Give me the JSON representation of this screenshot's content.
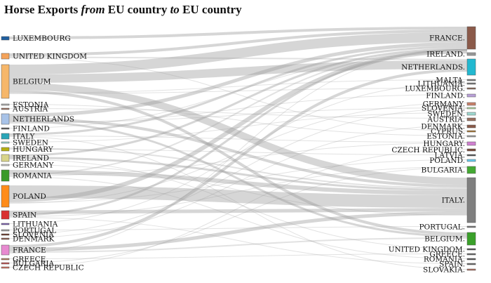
{
  "title": {
    "part1": "Horse Exports ",
    "part2": "from",
    "part3": " EU country ",
    "part4": "to",
    "part5": " EU country"
  },
  "colors": {
    "link": "#9e9e9e",
    "text": "#111111"
  },
  "source_nodes": [
    {
      "label": "LUXEMBOURG",
      "color": "#1f5fa0"
    },
    {
      "label": "UNITED KINGDOM",
      "color": "#f4a35a"
    },
    {
      "label": "BELGIUM",
      "color": "#f6b76a"
    },
    {
      "label": "ESTONIA",
      "color": "#b0b0b0"
    },
    {
      "label": "AUSTRIA",
      "color": "#9a6e5e"
    },
    {
      "label": "NETHERLANDS",
      "color": "#a8c3e8"
    },
    {
      "label": "FINLAND",
      "color": "#5a5a5a"
    },
    {
      "label": "ITALY",
      "color": "#2aa6b8"
    },
    {
      "label": "SWEDEN",
      "color": "#9fd9d0"
    },
    {
      "label": "HUNGARY",
      "color": "#b5b012"
    },
    {
      "label": "IRELAND",
      "color": "#d8d48a"
    },
    {
      "label": "GERMANY",
      "color": "#c8c8c8"
    },
    {
      "label": "ROMANIA",
      "color": "#3a9a2a"
    },
    {
      "label": "POLAND",
      "color": "#ff8c1a"
    },
    {
      "label": "SPAIN",
      "color": "#d93030"
    },
    {
      "label": "LITHUANIA",
      "color": "#7a5db0"
    },
    {
      "label": "PORTUGAL",
      "color": "#a0a0a0"
    },
    {
      "label": "SLOVENIA",
      "color": "#6b3a2a"
    },
    {
      "label": "DENMARK",
      "color": "#8a5a4a"
    },
    {
      "label": "FRANCE",
      "color": "#e78ad0"
    },
    {
      "label": "GREECE",
      "color": "#b08060"
    },
    {
      "label": "BULGARIA",
      "color": "#c05050"
    },
    {
      "label": "CZECH REPUBLIC",
      "color": "#d07060"
    }
  ],
  "target_nodes": [
    {
      "label": "FRANCE.",
      "color": "#8b5a4a"
    },
    {
      "label": "IRELAND.",
      "color": "#999999"
    },
    {
      "label": "NETHERLANDS.",
      "color": "#22b8d0"
    },
    {
      "label": "MALTA.",
      "color": "#777777"
    },
    {
      "label": "LITHUANIA.",
      "color": "#777777"
    },
    {
      "label": "LUXEMBOURG.",
      "color": "#8a6a5a"
    },
    {
      "label": "FINLAND.",
      "color": "#b9a0d8"
    },
    {
      "label": "GERMANY.",
      "color": "#c8806a"
    },
    {
      "label": "SLOVENIA.",
      "color": "#b2d8a0"
    },
    {
      "label": "SWEDEN.",
      "color": "#9fd9d0"
    },
    {
      "label": "AUSTRIA.",
      "color": "#9a6e5e"
    },
    {
      "label": "DENMARK.",
      "color": "#8a5a4a"
    },
    {
      "label": "CYPRUS.",
      "color": "#aa7733"
    },
    {
      "label": "ESTONIA.",
      "color": "#a0a0a0"
    },
    {
      "label": "HUNGARY.",
      "color": "#d080d0"
    },
    {
      "label": "CZECH REPUBLIC.",
      "color": "#7a4a3a"
    },
    {
      "label": "LATVIA.",
      "color": "#555555"
    },
    {
      "label": "POLAND.",
      "color": "#66ccee"
    },
    {
      "label": "BULGARIA.",
      "color": "#44aa33"
    },
    {
      "label": "ITALY.",
      "color": "#7f7f7f"
    },
    {
      "label": "PORTUGAL.",
      "color": "#777777"
    },
    {
      "label": "BELGIUM.",
      "color": "#3aa02a"
    },
    {
      "label": "UNITED KINGDOM.",
      "color": "#555555"
    },
    {
      "label": "GREECE.",
      "color": "#666666"
    },
    {
      "label": "ROMANIA.",
      "color": "#555555"
    },
    {
      "label": "SPAIN.",
      "color": "#666666"
    },
    {
      "label": "SLOVAKIA.",
      "color": "#b07060"
    }
  ]
}
